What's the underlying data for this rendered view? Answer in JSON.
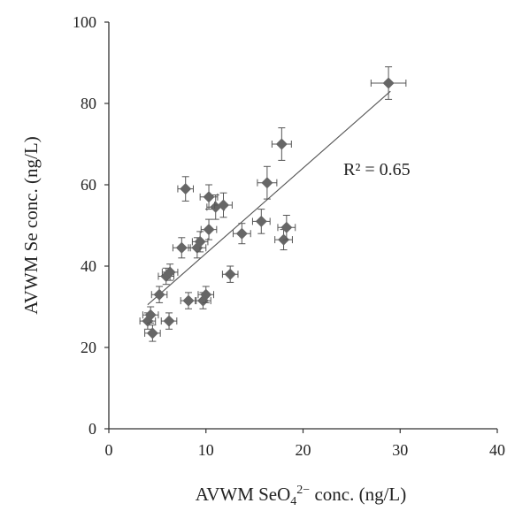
{
  "chart_data": {
    "type": "scatter",
    "title": "",
    "xlabel": "AVWM SeO",
    "xlabel_subscript": "4",
    "xlabel_superscript": "2−",
    "xlabel_suffix": " conc. (ng/L)",
    "ylabel": "AVWM Se conc. (ng/L)",
    "xlim": [
      0,
      40
    ],
    "ylim": [
      0,
      100
    ],
    "x_ticks": [
      0,
      10,
      20,
      30,
      40
    ],
    "y_ticks": [
      0,
      20,
      40,
      60,
      80,
      100
    ],
    "grid": false,
    "legend": "none",
    "marker": "diamond",
    "marker_color": "#666666",
    "errorbar_color": "#555555",
    "trendline_color": "#555555",
    "trendline_type": "linear",
    "r_squared_label": "R² = 0.65",
    "trendline": {
      "x_start": 4.0,
      "y_start": 30.5,
      "x_end": 29.0,
      "y_end": 83.0
    },
    "points": [
      {
        "x": 4.0,
        "y": 26.5,
        "xerr": 0.8,
        "yerr": 2.0
      },
      {
        "x": 4.3,
        "y": 28.0,
        "xerr": 0.8,
        "yerr": 2.0
      },
      {
        "x": 4.5,
        "y": 23.5,
        "xerr": 0.8,
        "yerr": 2.0
      },
      {
        "x": 5.2,
        "y": 33.0,
        "xerr": 0.8,
        "yerr": 2.0
      },
      {
        "x": 5.9,
        "y": 37.5,
        "xerr": 0.8,
        "yerr": 2.0
      },
      {
        "x": 6.3,
        "y": 38.5,
        "xerr": 0.8,
        "yerr": 2.0
      },
      {
        "x": 6.2,
        "y": 26.5,
        "xerr": 0.8,
        "yerr": 2.0
      },
      {
        "x": 7.5,
        "y": 44.5,
        "xerr": 0.9,
        "yerr": 2.5
      },
      {
        "x": 7.9,
        "y": 59.0,
        "xerr": 0.8,
        "yerr": 3.0
      },
      {
        "x": 8.2,
        "y": 31.5,
        "xerr": 0.8,
        "yerr": 2.0
      },
      {
        "x": 9.1,
        "y": 44.5,
        "xerr": 0.9,
        "yerr": 2.5
      },
      {
        "x": 9.4,
        "y": 46.0,
        "xerr": 0.8,
        "yerr": 2.5
      },
      {
        "x": 9.7,
        "y": 31.5,
        "xerr": 0.8,
        "yerr": 2.0
      },
      {
        "x": 10.0,
        "y": 33.0,
        "xerr": 0.8,
        "yerr": 2.0
      },
      {
        "x": 10.3,
        "y": 57.0,
        "xerr": 0.9,
        "yerr": 3.0
      },
      {
        "x": 10.3,
        "y": 49.0,
        "xerr": 0.8,
        "yerr": 2.5
      },
      {
        "x": 11.0,
        "y": 54.5,
        "xerr": 0.9,
        "yerr": 3.0
      },
      {
        "x": 11.8,
        "y": 55.0,
        "xerr": 0.9,
        "yerr": 3.0
      },
      {
        "x": 12.5,
        "y": 38.0,
        "xerr": 0.8,
        "yerr": 2.0
      },
      {
        "x": 13.7,
        "y": 48.0,
        "xerr": 0.9,
        "yerr": 2.5
      },
      {
        "x": 15.7,
        "y": 51.0,
        "xerr": 0.9,
        "yerr": 3.0
      },
      {
        "x": 16.3,
        "y": 60.5,
        "xerr": 1.0,
        "yerr": 4.0
      },
      {
        "x": 17.8,
        "y": 70.0,
        "xerr": 1.0,
        "yerr": 4.0
      },
      {
        "x": 18.0,
        "y": 46.5,
        "xerr": 0.9,
        "yerr": 2.5
      },
      {
        "x": 18.3,
        "y": 49.5,
        "xerr": 0.9,
        "yerr": 3.0
      },
      {
        "x": 28.8,
        "y": 85.0,
        "xerr": 1.8,
        "yerr": 4.0
      }
    ]
  }
}
